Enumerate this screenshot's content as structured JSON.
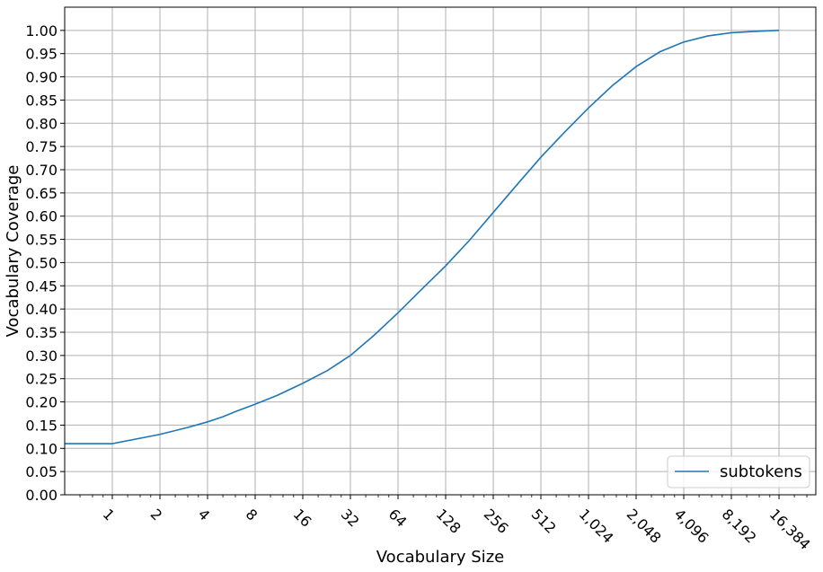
{
  "chart_data": {
    "type": "line",
    "title": "",
    "xlabel": "Vocabulary Size",
    "ylabel": "Vocabulary Coverage",
    "xscale": "log2",
    "xlim": [
      0.5,
      28000
    ],
    "ylim": [
      0,
      1.05
    ],
    "grid": true,
    "legend_position": "lower-right",
    "x_ticks": [
      1,
      2,
      4,
      8,
      16,
      32,
      64,
      128,
      256,
      512,
      1024,
      2048,
      4096,
      8192,
      16384
    ],
    "x_tick_labels": [
      "1",
      "2",
      "4",
      "8",
      "16",
      "32",
      "64",
      "128",
      "256",
      "512",
      "1,024",
      "2,048",
      "4,096",
      "8,192",
      "16,384"
    ],
    "y_ticks": [
      0,
      0.05,
      0.1,
      0.15,
      0.2,
      0.25,
      0.3,
      0.35,
      0.4,
      0.45,
      0.5,
      0.55,
      0.6,
      0.65,
      0.7,
      0.75,
      0.8,
      0.85,
      0.9,
      0.95,
      1.0
    ],
    "y_tick_labels": [
      "0.00",
      "0.05",
      "0.10",
      "0.15",
      "0.20",
      "0.25",
      "0.30",
      "0.35",
      "0.40",
      "0.45",
      "0.50",
      "0.55",
      "0.60",
      "0.65",
      "0.70",
      "0.75",
      "0.80",
      "0.85",
      "0.90",
      "0.95",
      "1.00"
    ],
    "series": [
      {
        "name": "subtokens",
        "color": "#1f77b4",
        "x": [
          0.5,
          1,
          2,
          3,
          4,
          5,
          6,
          8,
          11,
          16,
          23,
          32,
          45,
          64,
          90,
          128,
          181,
          256,
          362,
          512,
          724,
          1024,
          1448,
          2048,
          2896,
          4096,
          5793,
          8192,
          11585,
          16384
        ],
        "y": [
          0.11,
          0.11,
          0.13,
          0.145,
          0.157,
          0.168,
          0.179,
          0.195,
          0.214,
          0.24,
          0.268,
          0.3,
          0.343,
          0.392,
          0.442,
          0.493,
          0.548,
          0.608,
          0.668,
          0.727,
          0.781,
          0.833,
          0.881,
          0.922,
          0.954,
          0.975,
          0.988,
          0.995,
          0.998,
          1.0
        ]
      }
    ]
  }
}
